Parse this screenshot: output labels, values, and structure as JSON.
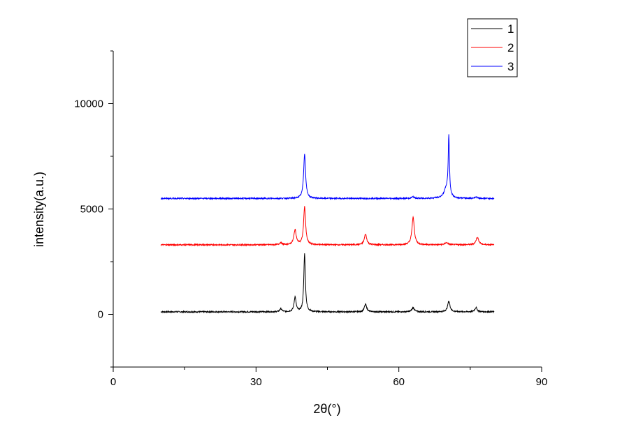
{
  "chart_data": {
    "type": "line",
    "title": "",
    "xlabel": "2θ(°)",
    "ylabel": "intensity(a.u.)",
    "xlim": [
      0,
      90
    ],
    "ylim": [
      -2500,
      12500
    ],
    "xticks": [
      0,
      30,
      60,
      90
    ],
    "yticks": [
      0,
      5000,
      10000
    ],
    "grid": false,
    "legend_position": "top-right",
    "series": [
      {
        "name": "1",
        "color": "#000000",
        "baseline": 120,
        "peaks": [
          {
            "x": 35.2,
            "height": 150,
            "width": 0.25
          },
          {
            "x": 38.2,
            "height": 700,
            "width": 0.25
          },
          {
            "x": 40.2,
            "height": 2750,
            "width": 0.2
          },
          {
            "x": 53.0,
            "height": 350,
            "width": 0.3
          },
          {
            "x": 63.0,
            "height": 200,
            "width": 0.3
          },
          {
            "x": 70.5,
            "height": 500,
            "width": 0.3
          },
          {
            "x": 76.2,
            "height": 200,
            "width": 0.3
          }
        ]
      },
      {
        "name": "2",
        "color": "#ff0000",
        "baseline": 3300,
        "peaks": [
          {
            "x": 35.2,
            "height": 100,
            "width": 0.3
          },
          {
            "x": 38.2,
            "height": 700,
            "width": 0.3
          },
          {
            "x": 40.2,
            "height": 1800,
            "width": 0.25
          },
          {
            "x": 53.0,
            "height": 500,
            "width": 0.3
          },
          {
            "x": 63.0,
            "height": 1300,
            "width": 0.3
          },
          {
            "x": 70.0,
            "height": 100,
            "width": 0.4
          },
          {
            "x": 76.5,
            "height": 350,
            "width": 0.35
          }
        ]
      },
      {
        "name": "3",
        "color": "#0000ff",
        "baseline": 5500,
        "peaks": [
          {
            "x": 40.2,
            "height": 2100,
            "width": 0.25
          },
          {
            "x": 63.0,
            "height": 80,
            "width": 0.3
          },
          {
            "x": 70.0,
            "height": 450,
            "width": 0.6
          },
          {
            "x": 70.5,
            "height": 2800,
            "width": 0.15
          },
          {
            "x": 76.2,
            "height": 70,
            "width": 0.3
          }
        ]
      }
    ]
  }
}
